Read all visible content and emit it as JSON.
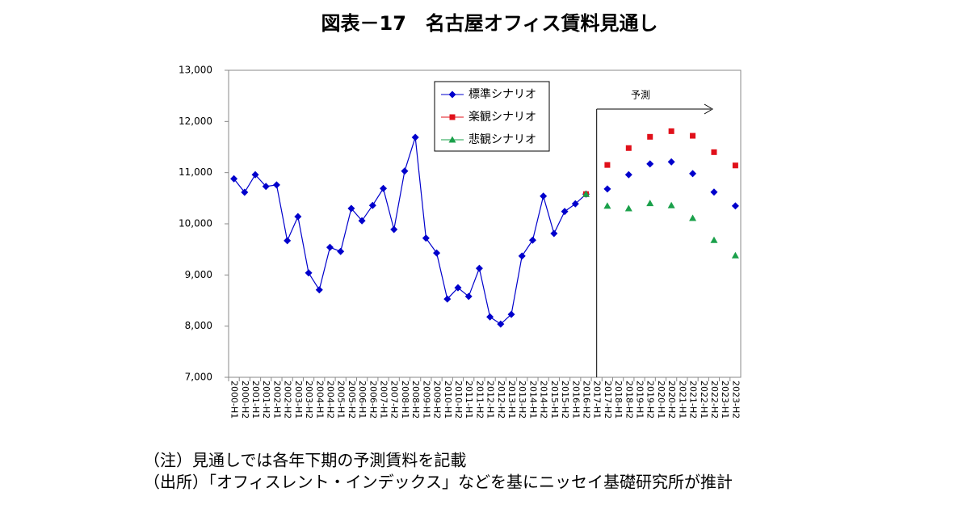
{
  "chart_data": {
    "type": "line",
    "title": "図表－17　名古屋オフィス賃料見通し",
    "categories": [
      "2000-H1",
      "2000-H2",
      "2001-H1",
      "2001-H2",
      "2002-H1",
      "2002-H2",
      "2003-H1",
      "2003-H2",
      "2004-H1",
      "2004-H2",
      "2005-H1",
      "2005-H2",
      "2006-H1",
      "2006-H2",
      "2007-H1",
      "2007-H2",
      "2008-H1",
      "2008-H2",
      "2009-H1",
      "2009-H2",
      "2010-H1",
      "2010-H2",
      "2011-H1",
      "2011-H2",
      "2012-H1",
      "2012-H2",
      "2013-H1",
      "2013-H2",
      "2014-H1",
      "2014-H2",
      "2015-H1",
      "2015-H2",
      "2016-H1",
      "2016-H2",
      "2017-H1",
      "2017-H2",
      "2018-H1",
      "2018-H2",
      "2019-H1",
      "2019-H2",
      "2020-H1",
      "2020-H2",
      "2021-H1",
      "2021-H2",
      "2022-H1",
      "2022-H2",
      "2023-H1",
      "2023-H2"
    ],
    "series": [
      {
        "name": "標準シナリオ",
        "color": "#0000cc",
        "marker": "diamond",
        "values": [
          10880,
          10615,
          10960,
          10730,
          10760,
          9670,
          10140,
          9040,
          8710,
          9540,
          9460,
          10300,
          10060,
          10360,
          10690,
          9890,
          11030,
          11690,
          9720,
          9430,
          8530,
          8750,
          8580,
          9130,
          8180,
          8040,
          8230,
          9370,
          9680,
          10540,
          9810,
          10240,
          10390,
          10580,
          null,
          10680,
          null,
          10960,
          null,
          11170,
          null,
          11210,
          null,
          10980,
          null,
          10620,
          null,
          10350
        ]
      },
      {
        "name": "楽観シナリオ",
        "color": "#e0101a",
        "marker": "square",
        "values": [
          null,
          null,
          null,
          null,
          null,
          null,
          null,
          null,
          null,
          null,
          null,
          null,
          null,
          null,
          null,
          null,
          null,
          null,
          null,
          null,
          null,
          null,
          null,
          null,
          null,
          null,
          null,
          null,
          null,
          null,
          null,
          null,
          null,
          10580,
          null,
          11150,
          null,
          11480,
          null,
          11700,
          null,
          11810,
          null,
          11720,
          null,
          11400,
          null,
          11140
        ]
      },
      {
        "name": "悲観シナリオ",
        "color": "#1aa04a",
        "marker": "triangle",
        "values": [
          null,
          null,
          null,
          null,
          null,
          null,
          null,
          null,
          null,
          null,
          null,
          null,
          null,
          null,
          null,
          null,
          null,
          null,
          null,
          null,
          null,
          null,
          null,
          null,
          null,
          null,
          null,
          null,
          null,
          null,
          null,
          null,
          null,
          10580,
          null,
          10350,
          null,
          10300,
          null,
          10400,
          null,
          10360,
          null,
          10110,
          null,
          9680,
          null,
          9380
        ]
      }
    ],
    "ylim": [
      7000,
      13000
    ],
    "yticks": [
      {
        "value": 7000,
        "label": "7,000"
      },
      {
        "value": 8000,
        "label": "8,000"
      },
      {
        "value": 9000,
        "label": "9,000"
      },
      {
        "value": 10000,
        "label": "10,000"
      },
      {
        "value": 11000,
        "label": "11,000"
      },
      {
        "value": 12000,
        "label": "12,000"
      },
      {
        "value": 13000,
        "label": "13,000"
      }
    ],
    "annotation": "予測",
    "forecast_start": "2017-H1",
    "notes": [
      "（注）見通しでは各年下期の予測賃料を記載",
      "（出所）「オフィスレント・インデックス」などを基にニッセイ基礎研究所が推計"
    ],
    "legend": "upper-center"
  }
}
